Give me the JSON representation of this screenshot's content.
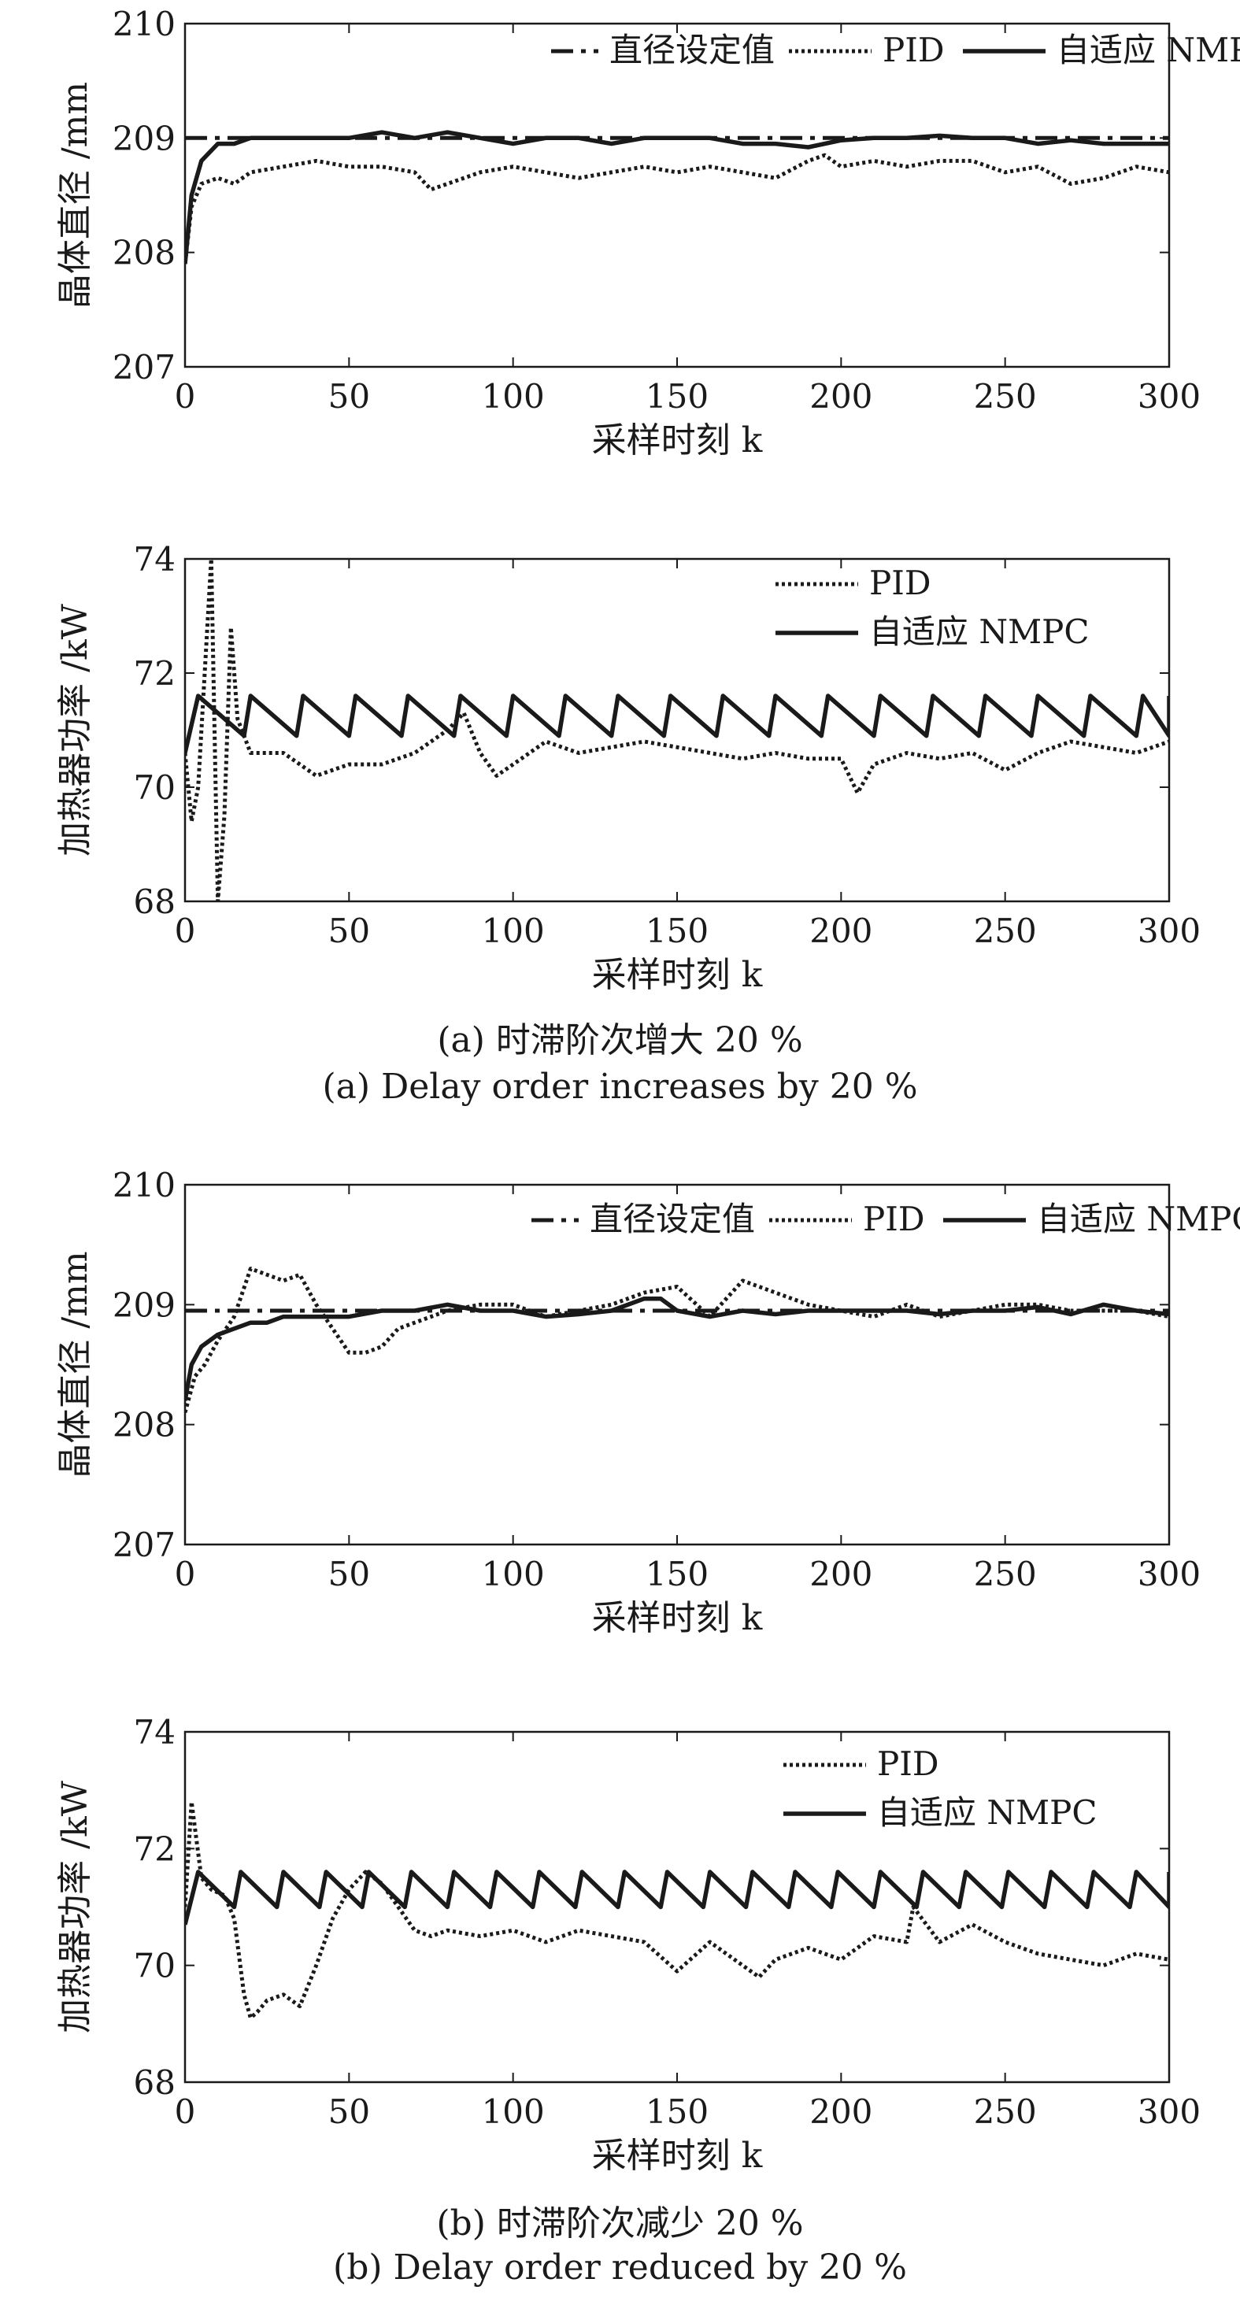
{
  "captions": {
    "a_cn": "(a) 时滞阶次增大 20 %",
    "a_en": "(a) Delay order increases by 20 %",
    "b_cn": "(b) 时滞阶次减少 20 %",
    "b_en": "(b) Delay order reduced by 20 %"
  },
  "chart_data": [
    {
      "id": "a-diameter",
      "type": "line",
      "title": "",
      "xlabel": "采样时刻 k",
      "ylabel": "晶体直径 /mm",
      "xlim": [
        0,
        300
      ],
      "ylim": [
        207,
        210
      ],
      "xticks": [
        0,
        50,
        100,
        150,
        200,
        250,
        300
      ],
      "yticks": [
        207,
        208,
        209,
        210
      ],
      "grid": false,
      "legend": "top-right-row",
      "series": [
        {
          "name": "直径设定值",
          "style": "dashdot",
          "x": [
            0,
            300
          ],
          "y": [
            209,
            209
          ]
        },
        {
          "name": "PID",
          "style": "dotted",
          "x": [
            0,
            2,
            5,
            10,
            15,
            20,
            30,
            40,
            50,
            60,
            70,
            75,
            80,
            90,
            100,
            110,
            120,
            130,
            140,
            150,
            160,
            170,
            180,
            190,
            195,
            200,
            210,
            220,
            230,
            240,
            250,
            260,
            270,
            280,
            290,
            300
          ],
          "y": [
            207.9,
            208.4,
            208.6,
            208.65,
            208.6,
            208.7,
            208.75,
            208.8,
            208.75,
            208.75,
            208.7,
            208.55,
            208.6,
            208.7,
            208.75,
            208.7,
            208.65,
            208.7,
            208.75,
            208.7,
            208.75,
            208.7,
            208.65,
            208.8,
            208.85,
            208.75,
            208.8,
            208.75,
            208.8,
            208.8,
            208.7,
            208.75,
            208.6,
            208.65,
            208.75,
            208.7
          ]
        },
        {
          "name": "自适应 NMPC",
          "style": "solid",
          "x": [
            0,
            2,
            5,
            10,
            15,
            20,
            30,
            40,
            50,
            60,
            70,
            80,
            90,
            100,
            110,
            120,
            130,
            140,
            150,
            160,
            170,
            180,
            190,
            200,
            210,
            220,
            230,
            240,
            250,
            260,
            270,
            280,
            290,
            300
          ],
          "y": [
            207.9,
            208.5,
            208.8,
            208.95,
            208.95,
            209.0,
            209.0,
            209.0,
            209.0,
            209.05,
            209.0,
            209.05,
            209.0,
            208.95,
            209.0,
            209.0,
            208.95,
            209.0,
            209.0,
            209.0,
            208.95,
            208.95,
            208.92,
            208.98,
            209.0,
            209.0,
            209.02,
            209.0,
            209.0,
            208.95,
            208.98,
            208.95,
            208.95,
            208.95
          ]
        }
      ]
    },
    {
      "id": "a-power",
      "type": "line",
      "title": "",
      "xlabel": "采样时刻 k",
      "ylabel": "加热器功率 /kW",
      "xlim": [
        0,
        300
      ],
      "ylim": [
        68,
        74
      ],
      "xticks": [
        0,
        50,
        100,
        150,
        200,
        250,
        300
      ],
      "yticks": [
        68,
        70,
        72,
        74
      ],
      "grid": false,
      "legend": "top-right",
      "series": [
        {
          "name": "PID",
          "style": "dotted",
          "x": [
            0,
            2,
            4,
            6,
            8,
            10,
            12,
            14,
            16,
            20,
            30,
            40,
            50,
            60,
            70,
            80,
            85,
            90,
            95,
            100,
            110,
            120,
            130,
            140,
            150,
            160,
            170,
            180,
            190,
            200,
            205,
            210,
            220,
            230,
            240,
            250,
            260,
            270,
            280,
            290,
            300
          ],
          "y": [
            70.6,
            69.4,
            70.0,
            72.0,
            74.0,
            68.0,
            69.5,
            72.8,
            71.2,
            70.6,
            70.6,
            70.2,
            70.4,
            70.4,
            70.6,
            71.0,
            71.3,
            70.6,
            70.2,
            70.4,
            70.8,
            70.6,
            70.7,
            70.8,
            70.7,
            70.6,
            70.5,
            70.6,
            70.5,
            70.5,
            69.9,
            70.4,
            70.6,
            70.5,
            70.6,
            70.3,
            70.6,
            70.8,
            70.7,
            70.6,
            70.8
          ]
        },
        {
          "name": "自适应 NMPC",
          "style": "solid",
          "kind": "sawtooth",
          "x_range": [
            0,
            300
          ],
          "period": 16,
          "low": 70.9,
          "high": 71.6,
          "start": 70.6
        }
      ]
    },
    {
      "id": "b-diameter",
      "type": "line",
      "title": "",
      "xlabel": "采样时刻 k",
      "ylabel": "晶体直径 /mm",
      "xlim": [
        0,
        300
      ],
      "ylim": [
        207,
        210
      ],
      "xticks": [
        0,
        50,
        100,
        150,
        200,
        250,
        300
      ],
      "yticks": [
        207,
        208,
        209,
        210
      ],
      "grid": false,
      "legend": "top-right-row",
      "series": [
        {
          "name": "直径设定值",
          "style": "dashdot",
          "x": [
            0,
            300
          ],
          "y": [
            208.95,
            208.95
          ]
        },
        {
          "name": "PID",
          "style": "dotted",
          "x": [
            0,
            3,
            6,
            10,
            15,
            20,
            25,
            30,
            35,
            40,
            45,
            50,
            55,
            60,
            65,
            70,
            80,
            90,
            100,
            110,
            120,
            130,
            140,
            150,
            160,
            170,
            175,
            180,
            190,
            200,
            210,
            220,
            230,
            240,
            250,
            260,
            270,
            280,
            290,
            300
          ],
          "y": [
            208.1,
            208.4,
            208.5,
            208.7,
            208.9,
            209.3,
            209.25,
            209.2,
            209.25,
            209.0,
            208.8,
            208.6,
            208.6,
            208.65,
            208.8,
            208.85,
            208.95,
            209.0,
            209.0,
            208.9,
            208.95,
            209.0,
            209.1,
            209.15,
            208.9,
            209.2,
            209.15,
            209.1,
            209.0,
            208.95,
            208.9,
            209.0,
            208.9,
            208.95,
            209.0,
            209.0,
            208.95,
            208.95,
            208.95,
            208.9
          ]
        },
        {
          "name": "自适应 NMPC",
          "style": "solid",
          "x": [
            0,
            2,
            5,
            10,
            15,
            20,
            25,
            30,
            40,
            50,
            60,
            70,
            80,
            90,
            100,
            110,
            120,
            130,
            140,
            145,
            150,
            160,
            170,
            180,
            190,
            200,
            210,
            220,
            230,
            240,
            250,
            260,
            270,
            280,
            290,
            300
          ],
          "y": [
            208.2,
            208.5,
            208.65,
            208.75,
            208.8,
            208.85,
            208.85,
            208.9,
            208.9,
            208.9,
            208.95,
            208.95,
            209.0,
            208.95,
            208.95,
            208.9,
            208.92,
            208.95,
            209.05,
            209.05,
            208.95,
            208.9,
            208.95,
            208.92,
            208.95,
            208.95,
            208.95,
            208.95,
            208.92,
            208.95,
            208.95,
            208.98,
            208.92,
            209.0,
            208.95,
            208.92
          ]
        }
      ]
    },
    {
      "id": "b-power",
      "type": "line",
      "title": "",
      "xlabel": "采样时刻 k",
      "ylabel": "加热器功率 /kW",
      "xlim": [
        0,
        300
      ],
      "ylim": [
        68,
        74
      ],
      "xticks": [
        0,
        50,
        100,
        150,
        200,
        250,
        300
      ],
      "yticks": [
        68,
        70,
        72,
        74
      ],
      "grid": false,
      "legend": "top-right",
      "series": [
        {
          "name": "PID",
          "style": "dotted",
          "x": [
            0,
            2,
            5,
            8,
            12,
            15,
            18,
            20,
            22,
            25,
            30,
            35,
            40,
            45,
            50,
            55,
            60,
            65,
            70,
            75,
            80,
            90,
            100,
            110,
            120,
            130,
            140,
            150,
            160,
            170,
            175,
            180,
            190,
            200,
            210,
            220,
            222,
            230,
            240,
            250,
            260,
            270,
            280,
            290,
            300
          ],
          "y": [
            71.0,
            72.8,
            71.5,
            71.3,
            71.2,
            70.8,
            69.5,
            69.1,
            69.2,
            69.4,
            69.5,
            69.3,
            70.0,
            70.8,
            71.3,
            71.6,
            71.4,
            71.0,
            70.6,
            70.5,
            70.6,
            70.5,
            70.6,
            70.4,
            70.6,
            70.5,
            70.4,
            69.9,
            70.4,
            70.0,
            69.8,
            70.1,
            70.3,
            70.1,
            70.5,
            70.4,
            71.0,
            70.4,
            70.7,
            70.4,
            70.2,
            70.1,
            70.0,
            70.2,
            70.1
          ]
        },
        {
          "name": "自适应 NMPC",
          "style": "solid",
          "kind": "sawtooth",
          "x_range": [
            0,
            300
          ],
          "period": 13,
          "low": 71.0,
          "high": 71.6,
          "start": 70.7
        }
      ]
    }
  ]
}
